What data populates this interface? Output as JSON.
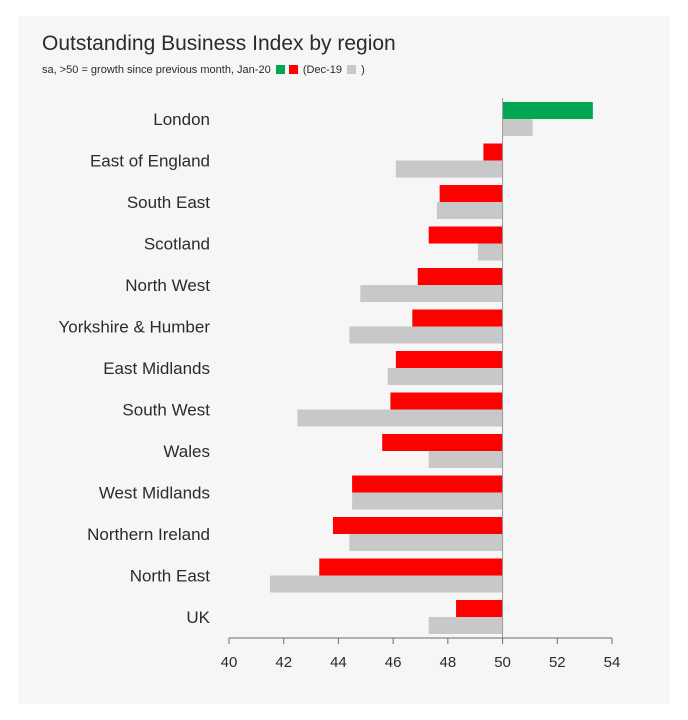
{
  "chart_data": {
    "type": "bar",
    "orientation": "horizontal",
    "title": "Outstanding Business Index by region",
    "subtitle": {
      "prefix": "sa, >50 = growth since previous month, Jan-20",
      "middle": "(Dec-19",
      "suffix": ")"
    },
    "categories": [
      "London",
      "East of England",
      "South East",
      "Scotland",
      "North West",
      "Yorkshire & Humber",
      "East Midlands",
      "South West",
      "Wales",
      "West Midlands",
      "Northern Ireland",
      "North East",
      "UK"
    ],
    "baseline": 50,
    "series": [
      {
        "values": [
          53.3,
          49.3,
          47.7,
          47.3,
          46.9,
          46.7,
          46.1,
          45.9,
          45.6,
          44.5,
          43.8,
          43.3,
          48.3
        ]
      },
      {
        "values": [
          51.1,
          46.1,
          47.6,
          49.1,
          44.8,
          44.4,
          45.8,
          42.5,
          47.3,
          44.5,
          44.4,
          41.5,
          47.3
        ]
      }
    ],
    "xlim": [
      40,
      54
    ],
    "xticks": [
      40,
      42,
      44,
      46,
      48,
      50,
      52,
      54
    ],
    "colors": {
      "growth": "#00a651",
      "decline": "#ff0000",
      "previous": "#c8c8c8"
    },
    "grid": false,
    "legend": "inline-subtitle"
  }
}
